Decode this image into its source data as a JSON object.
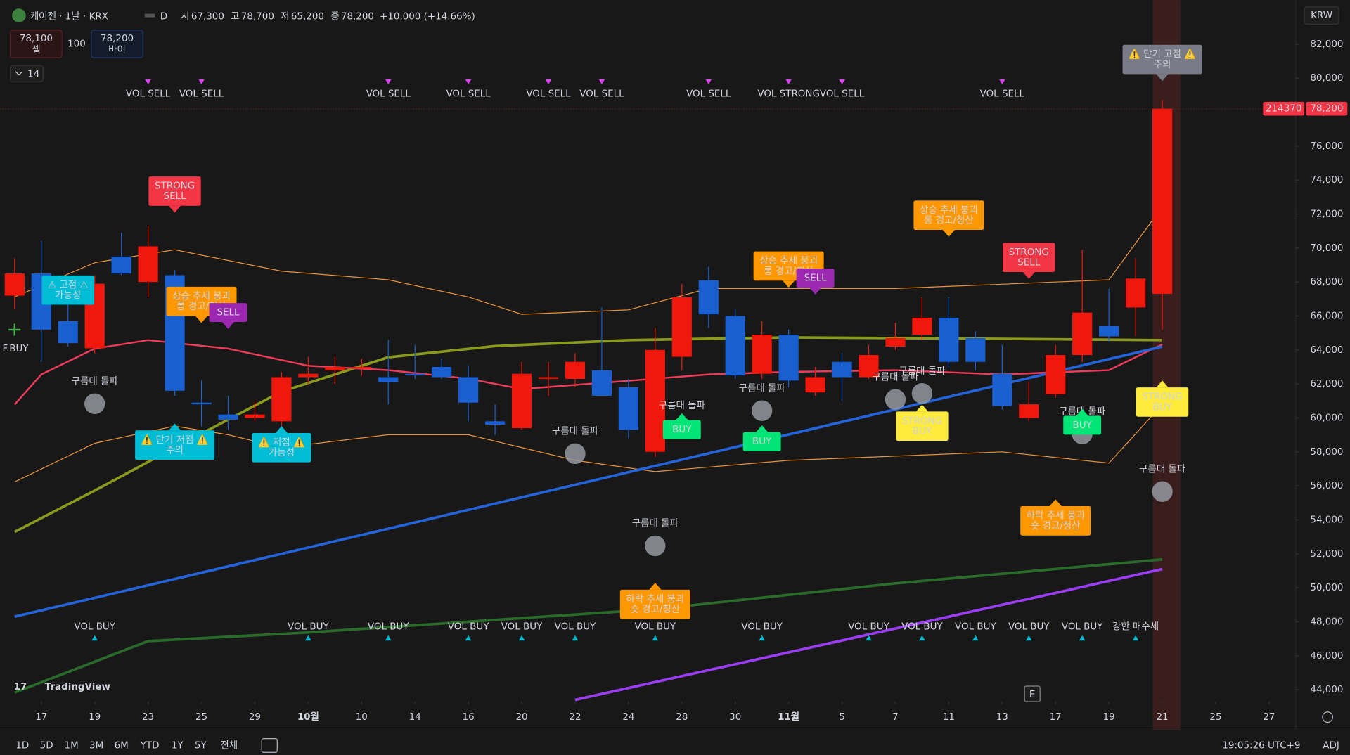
{
  "header": {
    "symbol": "케어젠 · 1날 · KRX",
    "interval": "D",
    "ohlc": [
      {
        "label": "시",
        "value": "67,300"
      },
      {
        "label": "고",
        "value": "78,700"
      },
      {
        "label": "저",
        "value": "65,200"
      },
      {
        "label": "종",
        "value": "78,200"
      }
    ],
    "change": "+10,000 (+14.66%)"
  },
  "trade": {
    "sell_price": "78,100",
    "sell": "셀",
    "qty": "100",
    "buy_price": "78,200",
    "buy": "바이"
  },
  "indicators_count": "14",
  "currency": "KRW",
  "logo": "TradingView",
  "event_marker": "E",
  "toolbar": {
    "ranges": [
      "1D",
      "5D",
      "1M",
      "3M",
      "6M",
      "YTD",
      "1Y",
      "5Y",
      "전체"
    ],
    "time": "19:05:26 UTC+9",
    "adj": "ADJ"
  },
  "chart_data": {
    "type": "candlestick",
    "up_color": "#f0180c",
    "down_color": "#1a5fd0",
    "candles": [
      {
        "open": 67200,
        "high": 69400,
        "low": 66400,
        "close": 68500
      },
      {
        "open": 68500,
        "high": 70400,
        "low": 63300,
        "close": 65200
      },
      {
        "open": 65700,
        "high": 67000,
        "low": 64200,
        "close": 64400
      },
      {
        "open": 64100,
        "high": 68400,
        "low": 63800,
        "close": 67900
      },
      {
        "open": 69500,
        "high": 70900,
        "low": 68400,
        "close": 68500
      },
      {
        "open": 68000,
        "high": 71300,
        "low": 67100,
        "close": 70100
      },
      {
        "open": 68400,
        "high": 68700,
        "low": 61300,
        "close": 61600
      },
      {
        "open": 60900,
        "high": 62200,
        "low": 59500,
        "close": 60800
      },
      {
        "open": 60200,
        "high": 61300,
        "low": 59300,
        "close": 59900
      },
      {
        "open": 60000,
        "high": 61000,
        "low": 59800,
        "close": 60200
      },
      {
        "open": 59800,
        "high": 62700,
        "low": 59500,
        "close": 62400
      },
      {
        "open": 62400,
        "high": 63600,
        "low": 62000,
        "close": 62600
      },
      {
        "open": 62800,
        "high": 63600,
        "low": 62000,
        "close": 63000
      },
      {
        "open": 62900,
        "high": 63500,
        "low": 62500,
        "close": 63000
      },
      {
        "open": 62400,
        "high": 64600,
        "low": 60800,
        "close": 62100
      },
      {
        "open": 62600,
        "high": 64300,
        "low": 62300,
        "close": 62500
      },
      {
        "open": 63000,
        "high": 63500,
        "low": 62300,
        "close": 62400
      },
      {
        "open": 62400,
        "high": 63100,
        "low": 59800,
        "close": 60900
      },
      {
        "open": 59800,
        "high": 60800,
        "low": 59000,
        "close": 59600
      },
      {
        "open": 59400,
        "high": 63300,
        "low": 59300,
        "close": 62600
      },
      {
        "open": 62300,
        "high": 63300,
        "low": 61300,
        "close": 62400
      },
      {
        "open": 62300,
        "high": 63800,
        "low": 61800,
        "close": 63300
      },
      {
        "open": 62800,
        "high": 66500,
        "low": 61300,
        "close": 61300
      },
      {
        "open": 61800,
        "high": 62300,
        "low": 58800,
        "close": 59300
      },
      {
        "open": 58000,
        "high": 65300,
        "low": 57700,
        "close": 64000
      },
      {
        "open": 63600,
        "high": 67900,
        "low": 62800,
        "close": 67100
      },
      {
        "open": 68100,
        "high": 68900,
        "low": 65300,
        "close": 66100
      },
      {
        "open": 66000,
        "high": 66400,
        "low": 62300,
        "close": 62500
      },
      {
        "open": 62600,
        "high": 65700,
        "low": 62300,
        "close": 64900
      },
      {
        "open": 64900,
        "high": 65200,
        "low": 61800,
        "close": 62200
      },
      {
        "open": 61500,
        "high": 63000,
        "low": 61300,
        "close": 62400
      },
      {
        "open": 63300,
        "high": 63800,
        "low": 61000,
        "close": 62400
      },
      {
        "open": 62400,
        "high": 64300,
        "low": 62300,
        "close": 63700
      },
      {
        "open": 64200,
        "high": 65600,
        "low": 64000,
        "close": 64700
      },
      {
        "open": 64900,
        "high": 67100,
        "low": 64600,
        "close": 65900
      },
      {
        "open": 65900,
        "high": 67100,
        "low": 63000,
        "close": 63300
      },
      {
        "open": 64700,
        "high": 65100,
        "low": 62800,
        "close": 63300
      },
      {
        "open": 62600,
        "high": 64300,
        "low": 60500,
        "close": 60700
      },
      {
        "open": 60000,
        "high": 62100,
        "low": 59800,
        "close": 60800
      },
      {
        "open": 61400,
        "high": 64300,
        "low": 61200,
        "close": 63700
      },
      {
        "open": 63700,
        "high": 69900,
        "low": 63300,
        "close": 66200
      },
      {
        "open": 65400,
        "high": 67600,
        "low": 64500,
        "close": 64800
      },
      {
        "open": 66500,
        "high": 69400,
        "low": 64800,
        "close": 68200
      },
      {
        "open": 67300,
        "high": 78700,
        "low": 65200,
        "close": 78200
      }
    ],
    "lines": [
      {
        "color": "#e8923a",
        "width": 1,
        "x": [
          0,
          3,
          6,
          10,
          14,
          17,
          19,
          23,
          26,
          29,
          33,
          37,
          41,
          43
        ],
        "values": [
          67120,
          69140,
          69900,
          68640,
          68130,
          67120,
          66100,
          66360,
          67620,
          67620,
          67620,
          67870,
          68130,
          72430
        ]
      },
      {
        "color": "#e8923a",
        "width": 1,
        "x": [
          0,
          3,
          6,
          8,
          10,
          14,
          17,
          21,
          24,
          29,
          33,
          37,
          41,
          43
        ],
        "values": [
          56230,
          58510,
          59520,
          59010,
          58250,
          59010,
          59010,
          57500,
          56840,
          57500,
          57750,
          58000,
          57340,
          60790
        ]
      },
      {
        "color": "#8a9a1e",
        "width": 3,
        "x": [
          0,
          3,
          6,
          10,
          14,
          18,
          23,
          29,
          35,
          43
        ],
        "values": [
          53290,
          55720,
          58250,
          61550,
          63570,
          64230,
          64580,
          64740,
          64680,
          64580
        ]
      },
      {
        "color": "#2a6a2a",
        "width": 3,
        "x": [
          0,
          5,
          11,
          24,
          33,
          43
        ],
        "values": [
          43830,
          46860,
          47370,
          48740,
          50260,
          51670
        ]
      },
      {
        "color": "#ef3b5a",
        "width": 2,
        "x": [
          0,
          1,
          3,
          5,
          8,
          11,
          14,
          17,
          19,
          24,
          26,
          29,
          33,
          37,
          41,
          43
        ],
        "values": [
          60790,
          62560,
          64080,
          64580,
          64080,
          63070,
          62810,
          62310,
          61700,
          62310,
          62560,
          62710,
          62810,
          62560,
          62810,
          64330
        ]
      },
      {
        "color": "#2563d8",
        "width": 3,
        "x": [
          0,
          43
        ],
        "values": [
          48300,
          64200
        ]
      },
      {
        "color": "#9b3df2",
        "width": 3,
        "x": [
          21,
          43
        ],
        "values": [
          43400,
          51100
        ]
      }
    ],
    "ylim": [
      43300,
      84600
    ],
    "yticks": [
      {
        "value": 44000,
        "label": "44,000"
      },
      {
        "value": 46000,
        "label": "46,000"
      },
      {
        "value": 48000,
        "label": "48,000"
      },
      {
        "value": 50000,
        "label": "50,000"
      },
      {
        "value": 52000,
        "label": "52,000"
      },
      {
        "value": 54000,
        "label": "54,000"
      },
      {
        "value": 56000,
        "label": "56,000"
      },
      {
        "value": 58000,
        "label": "58,000"
      },
      {
        "value": 60000,
        "label": "60,000"
      },
      {
        "value": 62000,
        "label": "62,000"
      },
      {
        "value": 64000,
        "label": "64,000"
      },
      {
        "value": 66000,
        "label": "66,000"
      },
      {
        "value": 68000,
        "label": "68,000"
      },
      {
        "value": 70000,
        "label": "70,000"
      },
      {
        "value": 72000,
        "label": "72,000"
      },
      {
        "value": 74000,
        "label": "74,000"
      },
      {
        "value": 76000,
        "label": "76,000"
      },
      {
        "value": 78000,
        "label": "78,000"
      },
      {
        "value": 80000,
        "label": "80,000"
      },
      {
        "value": 82000,
        "label": "82,000"
      }
    ],
    "xticks": [
      {
        "value": 1,
        "label": "17"
      },
      {
        "value": 3,
        "label": "19"
      },
      {
        "value": 5,
        "label": "23"
      },
      {
        "value": 7,
        "label": "25"
      },
      {
        "value": 9,
        "label": "29"
      },
      {
        "value": 11,
        "label": "10월"
      },
      {
        "value": 13,
        "label": "10"
      },
      {
        "value": 15,
        "label": "14"
      },
      {
        "value": 17,
        "label": "16"
      },
      {
        "value": 19,
        "label": "20"
      },
      {
        "value": 21,
        "label": "22"
      },
      {
        "value": 23,
        "label": "24"
      },
      {
        "value": 25,
        "label": "28"
      },
      {
        "value": 27,
        "label": "30"
      },
      {
        "value": 29,
        "label": "11월"
      },
      {
        "value": 31,
        "label": "5"
      },
      {
        "value": 33,
        "label": "7"
      },
      {
        "value": 35,
        "label": "11"
      },
      {
        "value": 37,
        "label": "13"
      },
      {
        "value": 39,
        "label": "17"
      },
      {
        "value": 41,
        "label": "19"
      },
      {
        "value": 43,
        "label": "21"
      },
      {
        "value": 45,
        "label": "25"
      },
      {
        "value": 47,
        "label": "27"
      }
    ],
    "last_price": {
      "value": 78200,
      "label": "78,200"
    },
    "volume_label": "214370",
    "signals_top": [
      {
        "text": "VOL SELL",
        "x": 5,
        "color": "#ffffff"
      },
      {
        "text": "VOL SELL",
        "x": 7,
        "color": "#ffffff"
      },
      {
        "text": "VOL SELL",
        "x": 14,
        "color": "#ffffff"
      },
      {
        "text": "VOL SELL",
        "x": 17,
        "color": "#ffffff"
      },
      {
        "text": "VOL SELL",
        "x": 20,
        "color": "#ffffff"
      },
      {
        "text": "VOL SELL",
        "x": 22,
        "color": "#ffffff"
      },
      {
        "text": "VOL SELL",
        "x": 26,
        "color": "#ffffff"
      },
      {
        "text": "VOL STRONG",
        "x": 29,
        "color": "#f23645"
      },
      {
        "text": "VOL SELL",
        "x": 31,
        "color": "#ffffff"
      },
      {
        "text": "VOL SELL",
        "x": 37,
        "color": "#ffffff"
      }
    ],
    "signals_bottom": [
      {
        "text": "VOL BUY",
        "x": 3,
        "color": "#4caf50"
      },
      {
        "text": "VOL BUY",
        "x": 11,
        "color": "#4caf50"
      },
      {
        "text": "VOL BUY",
        "x": 14,
        "color": "#4caf50"
      },
      {
        "text": "VOL BUY",
        "x": 17,
        "color": "#4caf50"
      },
      {
        "text": "VOL BUY",
        "x": 19,
        "color": "#4caf50"
      },
      {
        "text": "VOL BUY",
        "x": 21,
        "color": "#4caf50"
      },
      {
        "text": "VOL BUY",
        "x": 24,
        "color": "#4caf50"
      },
      {
        "text": "VOL BUY",
        "x": 28,
        "color": "#4caf50"
      },
      {
        "text": "VOL BUY",
        "x": 32,
        "color": "#4caf50"
      },
      {
        "text": "VOL BUY",
        "x": 34,
        "color": "#4caf50"
      },
      {
        "text": "VOL BUY",
        "x": 36,
        "color": "#4caf50"
      },
      {
        "text": "VOL BUY",
        "x": 38,
        "color": "#4caf50"
      },
      {
        "text": "VOL BUY",
        "x": 40,
        "color": "#4caf50"
      },
      {
        "text": "강한 매수세",
        "x": 42,
        "color": "#f23645"
      }
    ],
    "boxes": [
      {
        "text": [
          "STRONG",
          "SELL"
        ],
        "x": 6,
        "color": "#f23645",
        "text_color": "#ffffff",
        "pointer": "down"
      },
      {
        "text": [
          "상승 추세 붕괴",
          "롱 경고/청산"
        ],
        "x": 7,
        "color": "#ff9800",
        "text_color": "#3a2200",
        "pointer": "down"
      },
      {
        "text": [
          "SELL"
        ],
        "x": 8,
        "color": "#9c27b0",
        "text_color": "#ffffff",
        "pointer": "down"
      },
      {
        "text": [
          "⚠ 고점 ⚠",
          "가능성"
        ],
        "x": 2,
        "color": "#00bcd4",
        "text_color": "#ffffff",
        "pointer": "none"
      },
      {
        "text": [
          "⚠️ 단기 저점 ⚠️",
          "주의"
        ],
        "x": 6,
        "color": "#00bcd4",
        "text_color": "#ffffff",
        "pointer": "up"
      },
      {
        "text": [
          "⚠️ 저점 ⚠️",
          "가능성"
        ],
        "x": 10,
        "color": "#00bcd4",
        "text_color": "#ffffff",
        "pointer": "up"
      },
      {
        "text": [
          "상승 추세 붕괴",
          "롱 경고/청산"
        ],
        "x": 29,
        "color": "#ff9800",
        "text_color": "#3a2200",
        "pointer": "down"
      },
      {
        "text": [
          "SELL"
        ],
        "x": 30,
        "color": "#9c27b0",
        "text_color": "#ffffff",
        "pointer": "down"
      },
      {
        "text": [
          "상승 추세 붕괴",
          "롱 경고/청산"
        ],
        "x": 35,
        "color": "#ff9800",
        "text_color": "#3a2200",
        "pointer": "down"
      },
      {
        "text": [
          "STRONG",
          "SELL"
        ],
        "x": 38,
        "color": "#f23645",
        "text_color": "#ffffff",
        "pointer": "down"
      },
      {
        "text": [
          "⚠️ 단기 고점 ⚠️",
          "주의"
        ],
        "x": 43,
        "color": "#787b86",
        "text_color": "#ffffff",
        "pointer": "down"
      },
      {
        "text": [
          "STRONG",
          "BUY"
        ],
        "x": 43,
        "color": "#ffeb3b",
        "text_color": "#333333",
        "pointer": "up"
      },
      {
        "text": [
          "STRONG",
          "BUY"
        ],
        "x": 34,
        "color": "#ffeb3b",
        "text_color": "#333333",
        "pointer": "up"
      },
      {
        "text": [
          "BUY"
        ],
        "x": 28,
        "color": "#00e676",
        "text_color": "#1a3a1a",
        "pointer": "up"
      },
      {
        "text": [
          "BUY"
        ],
        "x": 25,
        "color": "#00e676",
        "text_color": "#1a3a1a",
        "pointer": "up"
      },
      {
        "text": [
          "BUY"
        ],
        "x": 40,
        "color": "#00e676",
        "text_color": "#1a3a1a",
        "pointer": "up"
      },
      {
        "text": [
          "하락 추세 붕괴",
          "숏 경고/청산"
        ],
        "x": 39,
        "color": "#ff9800",
        "text_color": "#3a2200",
        "pointer": "up"
      },
      {
        "text": [
          "하락 추세 붕괴",
          "숏 경고/청산"
        ],
        "x": 24,
        "color": "#ff9800",
        "text_color": "#3a2200",
        "pointer": "up"
      }
    ],
    "cloud_break": {
      "text": "구름대 돌파",
      "x": [
        3,
        21,
        24,
        25,
        28,
        33,
        34,
        40,
        43
      ]
    },
    "side_signal": "F.BUY"
  }
}
